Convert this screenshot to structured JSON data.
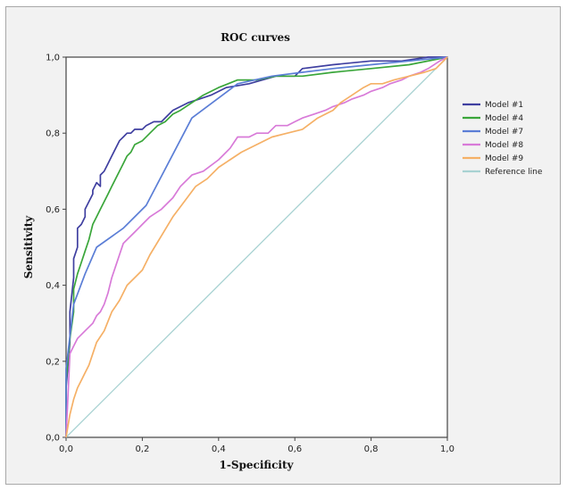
{
  "chart_data": {
    "type": "line",
    "title": "ROC curves",
    "xlabel": "1-Specificity",
    "ylabel": "Sensitivity",
    "xlim": [
      0,
      1
    ],
    "ylim": [
      0,
      1
    ],
    "xticks": [
      "0,0",
      "0,2",
      "0,4",
      "0,6",
      "0,8",
      "1,0"
    ],
    "yticks": [
      "0,0",
      "0,2",
      "0,4",
      "0,6",
      "0,8",
      "1,0"
    ],
    "grid": false,
    "legend_position": "right",
    "series": [
      {
        "name": "Model #1",
        "color": "#3f3fa0",
        "x": [
          0,
          0,
          0.01,
          0.01,
          0.02,
          0.02,
          0.03,
          0.03,
          0.04,
          0.05,
          0.05,
          0.06,
          0.07,
          0.07,
          0.08,
          0.09,
          0.09,
          0.1,
          0.11,
          0.12,
          0.13,
          0.14,
          0.15,
          0.16,
          0.17,
          0.18,
          0.2,
          0.21,
          0.23,
          0.25,
          0.27,
          0.28,
          0.3,
          0.32,
          0.35,
          0.38,
          0.42,
          0.48,
          0.55,
          0.6,
          0.62,
          0.7,
          0.8,
          0.88,
          0.95,
          1.0
        ],
        "y": [
          0,
          0.13,
          0.25,
          0.33,
          0.42,
          0.47,
          0.5,
          0.55,
          0.56,
          0.58,
          0.6,
          0.62,
          0.64,
          0.65,
          0.67,
          0.66,
          0.69,
          0.7,
          0.72,
          0.74,
          0.76,
          0.78,
          0.79,
          0.8,
          0.8,
          0.81,
          0.81,
          0.82,
          0.83,
          0.83,
          0.85,
          0.86,
          0.87,
          0.88,
          0.89,
          0.9,
          0.92,
          0.93,
          0.95,
          0.95,
          0.97,
          0.98,
          0.99,
          0.99,
          1.0,
          1.0
        ]
      },
      {
        "name": "Model #4",
        "color": "#3aa63a",
        "x": [
          0,
          0,
          0.01,
          0.02,
          0.02,
          0.03,
          0.04,
          0.05,
          0.06,
          0.07,
          0.08,
          0.09,
          0.1,
          0.11,
          0.12,
          0.13,
          0.14,
          0.15,
          0.16,
          0.17,
          0.18,
          0.2,
          0.22,
          0.24,
          0.26,
          0.28,
          0.3,
          0.33,
          0.36,
          0.4,
          0.45,
          0.5,
          0.55,
          0.62,
          0.7,
          0.8,
          0.9,
          1.0
        ],
        "y": [
          0,
          0.15,
          0.26,
          0.33,
          0.39,
          0.43,
          0.46,
          0.49,
          0.52,
          0.56,
          0.58,
          0.6,
          0.62,
          0.64,
          0.66,
          0.68,
          0.7,
          0.72,
          0.74,
          0.75,
          0.77,
          0.78,
          0.8,
          0.82,
          0.83,
          0.85,
          0.86,
          0.88,
          0.9,
          0.92,
          0.94,
          0.94,
          0.95,
          0.95,
          0.96,
          0.97,
          0.98,
          1.0
        ]
      },
      {
        "name": "Model #7",
        "color": "#5b7ed6",
        "x": [
          0,
          0,
          0.02,
          0.05,
          0.08,
          0.15,
          0.21,
          0.33,
          0.45,
          0.54,
          0.62,
          0.7,
          0.8,
          0.9,
          1.0
        ],
        "y": [
          0,
          0.18,
          0.35,
          0.43,
          0.5,
          0.55,
          0.61,
          0.84,
          0.93,
          0.95,
          0.96,
          0.97,
          0.98,
          0.99,
          1.0
        ]
      },
      {
        "name": "Model #8",
        "color": "#d87ad8",
        "x": [
          0,
          0.01,
          0.02,
          0.03,
          0.05,
          0.07,
          0.08,
          0.09,
          0.1,
          0.11,
          0.12,
          0.13,
          0.14,
          0.15,
          0.16,
          0.18,
          0.2,
          0.22,
          0.25,
          0.28,
          0.3,
          0.33,
          0.36,
          0.4,
          0.43,
          0.45,
          0.48,
          0.5,
          0.53,
          0.55,
          0.58,
          0.6,
          0.62,
          0.65,
          0.68,
          0.7,
          0.73,
          0.75,
          0.78,
          0.8,
          0.83,
          0.85,
          0.88,
          0.9,
          0.93,
          0.95,
          0.98,
          1.0
        ],
        "y": [
          0,
          0.22,
          0.24,
          0.26,
          0.28,
          0.3,
          0.32,
          0.33,
          0.35,
          0.38,
          0.42,
          0.45,
          0.48,
          0.51,
          0.52,
          0.54,
          0.56,
          0.58,
          0.6,
          0.63,
          0.66,
          0.69,
          0.7,
          0.73,
          0.76,
          0.79,
          0.79,
          0.8,
          0.8,
          0.82,
          0.82,
          0.83,
          0.84,
          0.85,
          0.86,
          0.87,
          0.88,
          0.89,
          0.9,
          0.91,
          0.92,
          0.93,
          0.94,
          0.95,
          0.96,
          0.97,
          0.99,
          1.0
        ]
      },
      {
        "name": "Model #9",
        "color": "#f5b066",
        "x": [
          0,
          0.01,
          0.02,
          0.03,
          0.04,
          0.05,
          0.06,
          0.07,
          0.08,
          0.1,
          0.12,
          0.14,
          0.16,
          0.18,
          0.2,
          0.22,
          0.25,
          0.28,
          0.31,
          0.34,
          0.37,
          0.4,
          0.43,
          0.46,
          0.5,
          0.54,
          0.58,
          0.62,
          0.66,
          0.7,
          0.72,
          0.75,
          0.78,
          0.8,
          0.83,
          0.86,
          0.9,
          0.94,
          0.97,
          1.0
        ],
        "y": [
          0,
          0.06,
          0.1,
          0.13,
          0.15,
          0.17,
          0.19,
          0.22,
          0.25,
          0.28,
          0.33,
          0.36,
          0.4,
          0.42,
          0.44,
          0.48,
          0.53,
          0.58,
          0.62,
          0.66,
          0.68,
          0.71,
          0.73,
          0.75,
          0.77,
          0.79,
          0.8,
          0.81,
          0.84,
          0.86,
          0.88,
          0.9,
          0.92,
          0.93,
          0.93,
          0.94,
          0.95,
          0.96,
          0.97,
          1.0
        ]
      },
      {
        "name": "Reference line",
        "color": "#a8d2d2",
        "x": [
          0,
          1
        ],
        "y": [
          0,
          1
        ]
      }
    ]
  }
}
